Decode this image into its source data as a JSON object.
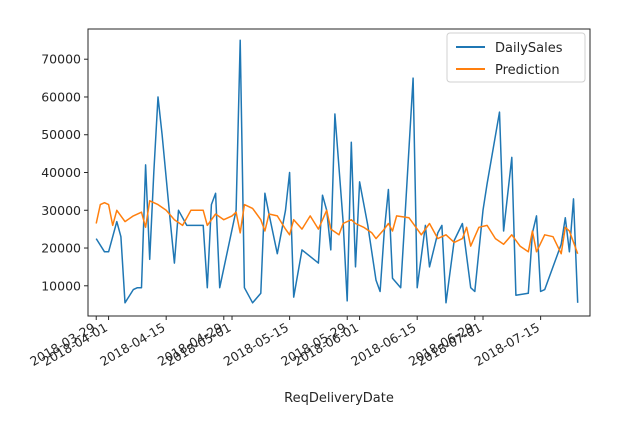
{
  "chart_data": {
    "type": "line",
    "title": "",
    "xlabel": "ReqDeliveryDate",
    "ylabel": "",
    "x_range": [
      "2018-03-27",
      "2018-07-27"
    ],
    "ylim": [
      2000,
      78000
    ],
    "grid": false,
    "legend_position": "top-right",
    "y_ticks": [
      {
        "value": 10000,
        "label": "10000"
      },
      {
        "value": 20000,
        "label": "20000"
      },
      {
        "value": 30000,
        "label": "30000"
      },
      {
        "value": 40000,
        "label": "40000"
      },
      {
        "value": 50000,
        "label": "50000"
      },
      {
        "value": 60000,
        "label": "60000"
      },
      {
        "value": 70000,
        "label": "70000"
      }
    ],
    "x_ticks": [
      {
        "value": "2018-03-29",
        "label": "2018-03-29"
      },
      {
        "value": "2018-04-01",
        "label": "2018-04-01"
      },
      {
        "value": "2018-04-15",
        "label": "2018-04-15"
      },
      {
        "value": "2018-04-29",
        "label": "2018-04-29"
      },
      {
        "value": "2018-05-01",
        "label": "2018-05-01"
      },
      {
        "value": "2018-05-15",
        "label": "2018-05-15"
      },
      {
        "value": "2018-05-29",
        "label": "2018-05-29"
      },
      {
        "value": "2018-06-01",
        "label": "2018-06-01"
      },
      {
        "value": "2018-06-15",
        "label": "2018-06-15"
      },
      {
        "value": "2018-06-29",
        "label": "2018-06-29"
      },
      {
        "value": "2018-07-01",
        "label": "2018-07-01"
      },
      {
        "value": "2018-07-15",
        "label": "2018-07-15"
      }
    ],
    "series": [
      {
        "name": "DailySales",
        "color": "#1f77b4",
        "points": [
          [
            "2018-03-29",
            22500
          ],
          [
            "2018-03-31",
            19000
          ],
          [
            "2018-04-01",
            19000
          ],
          [
            "2018-04-03",
            27000
          ],
          [
            "2018-04-04",
            23000
          ],
          [
            "2018-04-05",
            5500
          ],
          [
            "2018-04-07",
            9000
          ],
          [
            "2018-04-08",
            9500
          ],
          [
            "2018-04-09",
            9500
          ],
          [
            "2018-04-10",
            42000
          ],
          [
            "2018-04-11",
            17000
          ],
          [
            "2018-04-12",
            40000
          ],
          [
            "2018-04-13",
            60000
          ],
          [
            "2018-04-14",
            50000
          ],
          [
            "2018-04-16",
            27000
          ],
          [
            "2018-04-17",
            16000
          ],
          [
            "2018-04-18",
            30000
          ],
          [
            "2018-04-20",
            26000
          ],
          [
            "2018-04-24",
            26000
          ],
          [
            "2018-04-25",
            9500
          ],
          [
            "2018-04-26",
            31500
          ],
          [
            "2018-04-27",
            34500
          ],
          [
            "2018-04-28",
            9500
          ],
          [
            "2018-05-02",
            30000
          ],
          [
            "2018-05-03",
            75000
          ],
          [
            "2018-05-04",
            9500
          ],
          [
            "2018-05-06",
            5500
          ],
          [
            "2018-05-08",
            8000
          ],
          [
            "2018-05-09",
            34500
          ],
          [
            "2018-05-10",
            29000
          ],
          [
            "2018-05-12",
            18500
          ],
          [
            "2018-05-14",
            30000
          ],
          [
            "2018-05-15",
            40000
          ],
          [
            "2018-05-16",
            7000
          ],
          [
            "2018-05-18",
            19500
          ],
          [
            "2018-05-22",
            16000
          ],
          [
            "2018-05-23",
            34000
          ],
          [
            "2018-05-24",
            30000
          ],
          [
            "2018-05-25",
            19500
          ],
          [
            "2018-05-26",
            55500
          ],
          [
            "2018-05-28",
            27000
          ],
          [
            "2018-05-29",
            6000
          ],
          [
            "2018-05-30",
            48000
          ],
          [
            "2018-05-31",
            15000
          ],
          [
            "2018-06-01",
            37500
          ],
          [
            "2018-06-03",
            26000
          ],
          [
            "2018-06-05",
            11500
          ],
          [
            "2018-06-06",
            8500
          ],
          [
            "2018-06-07",
            24500
          ],
          [
            "2018-06-08",
            35500
          ],
          [
            "2018-06-09",
            12000
          ],
          [
            "2018-06-11",
            9500
          ],
          [
            "2018-06-12",
            27500
          ],
          [
            "2018-06-14",
            65000
          ],
          [
            "2018-06-15",
            9500
          ],
          [
            "2018-06-17",
            26000
          ],
          [
            "2018-06-18",
            15000
          ],
          [
            "2018-06-20",
            24000
          ],
          [
            "2018-06-21",
            26000
          ],
          [
            "2018-06-22",
            5500
          ],
          [
            "2018-06-24",
            22000
          ],
          [
            "2018-06-26",
            26500
          ],
          [
            "2018-06-28",
            9500
          ],
          [
            "2018-06-29",
            8500
          ],
          [
            "2018-07-01",
            30000
          ],
          [
            "2018-07-02",
            37000
          ],
          [
            "2018-07-05",
            56000
          ],
          [
            "2018-07-06",
            24500
          ],
          [
            "2018-07-08",
            44000
          ],
          [
            "2018-07-09",
            7500
          ],
          [
            "2018-07-12",
            8000
          ],
          [
            "2018-07-13",
            24000
          ],
          [
            "2018-07-14",
            28500
          ],
          [
            "2018-07-15",
            8500
          ],
          [
            "2018-07-16",
            9000
          ],
          [
            "2018-07-20",
            21000
          ],
          [
            "2018-07-21",
            28000
          ],
          [
            "2018-07-22",
            19000
          ],
          [
            "2018-07-23",
            33000
          ],
          [
            "2018-07-24",
            5500
          ]
        ]
      },
      {
        "name": "Prediction",
        "color": "#ff7f0e",
        "points": [
          [
            "2018-03-29",
            26500
          ],
          [
            "2018-03-30",
            31500
          ],
          [
            "2018-03-31",
            32000
          ],
          [
            "2018-04-01",
            31500
          ],
          [
            "2018-04-02",
            26000
          ],
          [
            "2018-04-03",
            30000
          ],
          [
            "2018-04-05",
            27000
          ],
          [
            "2018-04-07",
            28500
          ],
          [
            "2018-04-09",
            29500
          ],
          [
            "2018-04-10",
            25500
          ],
          [
            "2018-04-11",
            32500
          ],
          [
            "2018-04-13",
            31500
          ],
          [
            "2018-04-15",
            30000
          ],
          [
            "2018-04-17",
            27500
          ],
          [
            "2018-04-19",
            26000
          ],
          [
            "2018-04-21",
            30000
          ],
          [
            "2018-04-23",
            30000
          ],
          [
            "2018-04-24",
            30000
          ],
          [
            "2018-04-25",
            26000
          ],
          [
            "2018-04-27",
            29000
          ],
          [
            "2018-04-29",
            27500
          ],
          [
            "2018-05-01",
            28500
          ],
          [
            "2018-05-02",
            29500
          ],
          [
            "2018-05-03",
            24000
          ],
          [
            "2018-05-04",
            31500
          ],
          [
            "2018-05-06",
            30500
          ],
          [
            "2018-05-08",
            27500
          ],
          [
            "2018-05-09",
            24500
          ],
          [
            "2018-05-10",
            29000
          ],
          [
            "2018-05-12",
            28500
          ],
          [
            "2018-05-14",
            25000
          ],
          [
            "2018-05-15",
            23500
          ],
          [
            "2018-05-16",
            27500
          ],
          [
            "2018-05-18",
            25000
          ],
          [
            "2018-05-20",
            28500
          ],
          [
            "2018-05-22",
            25000
          ],
          [
            "2018-05-24",
            30000
          ],
          [
            "2018-05-25",
            25000
          ],
          [
            "2018-05-27",
            23500
          ],
          [
            "2018-05-28",
            26500
          ],
          [
            "2018-05-30",
            27500
          ],
          [
            "2018-05-31",
            26500
          ],
          [
            "2018-06-02",
            25500
          ],
          [
            "2018-06-04",
            24000
          ],
          [
            "2018-06-05",
            22500
          ],
          [
            "2018-06-07",
            25000
          ],
          [
            "2018-06-08",
            26500
          ],
          [
            "2018-06-09",
            24500
          ],
          [
            "2018-06-10",
            28500
          ],
          [
            "2018-06-13",
            28000
          ],
          [
            "2018-06-15",
            25000
          ],
          [
            "2018-06-16",
            23500
          ],
          [
            "2018-06-18",
            26500
          ],
          [
            "2018-06-20",
            22500
          ],
          [
            "2018-06-22",
            23500
          ],
          [
            "2018-06-24",
            21500
          ],
          [
            "2018-06-26",
            22500
          ],
          [
            "2018-06-27",
            25500
          ],
          [
            "2018-06-28",
            20500
          ],
          [
            "2018-06-30",
            25500
          ],
          [
            "2018-07-02",
            26000
          ],
          [
            "2018-07-04",
            22500
          ],
          [
            "2018-07-06",
            21000
          ],
          [
            "2018-07-08",
            23500
          ],
          [
            "2018-07-10",
            20500
          ],
          [
            "2018-07-12",
            19000
          ],
          [
            "2018-07-13",
            24500
          ],
          [
            "2018-07-14",
            19000
          ],
          [
            "2018-07-16",
            23500
          ],
          [
            "2018-07-18",
            23000
          ],
          [
            "2018-07-20",
            18500
          ],
          [
            "2018-07-21",
            25500
          ],
          [
            "2018-07-22",
            24500
          ],
          [
            "2018-07-24",
            18500
          ]
        ]
      }
    ]
  }
}
